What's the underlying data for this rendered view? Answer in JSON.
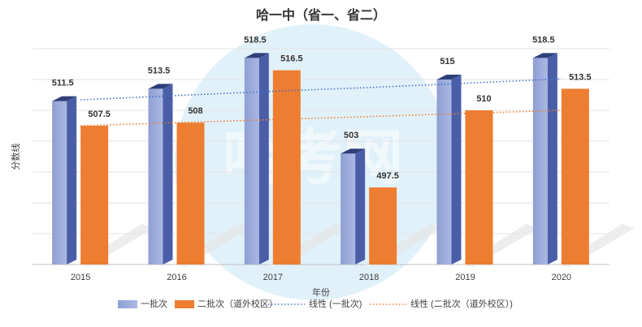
{
  "chart_data": {
    "type": "bar3d",
    "title": "哈一中（省一、省二）",
    "watermark": "哈考网",
    "x_label": "年份",
    "y_label": "分数线",
    "categories": [
      "2015",
      "2016",
      "2017",
      "2018",
      "2019",
      "2020"
    ],
    "series": [
      {
        "name": "一批次",
        "color": "#4a5ea8",
        "values": [
          511.5,
          513.5,
          518.5,
          503,
          515,
          518.5
        ]
      },
      {
        "name": "二批次（道外校区）",
        "color": "#ed7d31",
        "values": [
          507.5,
          508,
          516.5,
          497.5,
          510,
          513.5
        ]
      },
      {
        "name": "线性 (一批次)",
        "type": "line",
        "color": "#4472c4",
        "values": [
          511.7,
          512.4,
          513.1,
          513.7,
          514.4,
          515.1
        ]
      },
      {
        "name": "线性 (二批次（道外校区）)",
        "type": "line",
        "color": "#ed7d31",
        "values": [
          507.5,
          508,
          508.5,
          509,
          509.5,
          510
        ]
      }
    ],
    "ylim": [
      485,
      520
    ],
    "yticks": [
      485,
      490,
      495,
      500,
      505,
      510,
      515,
      520
    ],
    "grid": true,
    "show_ytick_labels": false,
    "legend": "bottom"
  }
}
